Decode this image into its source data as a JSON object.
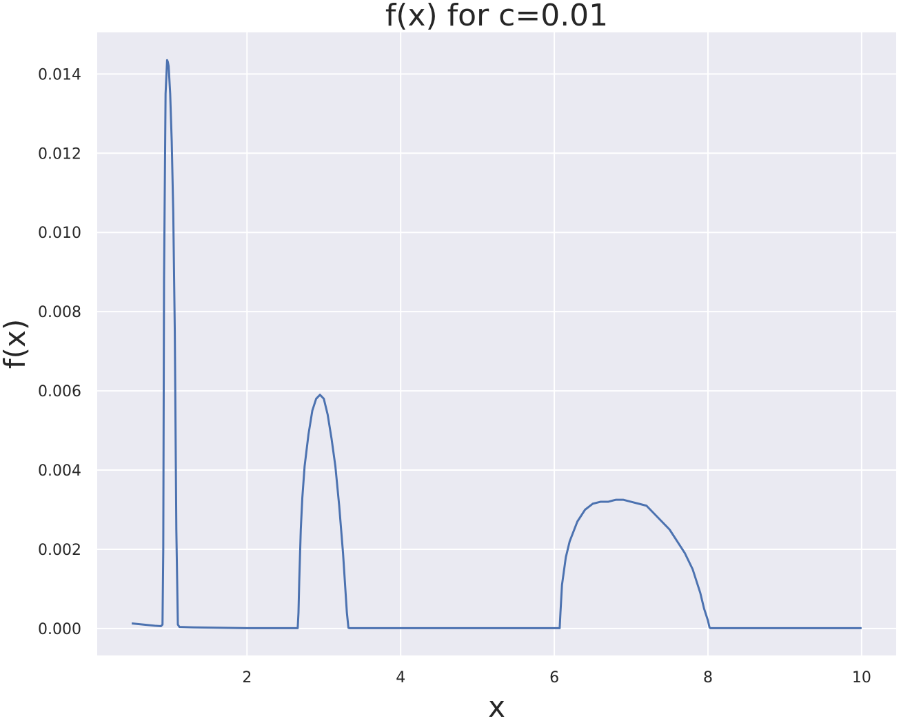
{
  "chart_data": {
    "type": "line",
    "title": "f(x) for c=0.01",
    "xlabel": "x",
    "ylabel": "f(x)",
    "xlim": [
      0.05,
      10.45
    ],
    "ylim": [
      -0.00068,
      0.01505
    ],
    "xticks": [
      2,
      4,
      6,
      8,
      10
    ],
    "yticks": [
      0.0,
      0.002,
      0.004,
      0.006,
      0.008,
      0.01,
      0.012,
      0.014
    ],
    "xtick_labels": [
      "2",
      "4",
      "6",
      "8",
      "10"
    ],
    "ytick_labels": [
      "0.000",
      "0.002",
      "0.004",
      "0.006",
      "0.008",
      "0.010",
      "0.012",
      "0.014"
    ],
    "grid": true,
    "background_color": "#eaeaf2",
    "grid_color": "#ffffff",
    "series": [
      {
        "color": "#4c72b0",
        "x": [
          0.5,
          0.6,
          0.7,
          0.8,
          0.88,
          0.9,
          0.91,
          0.92,
          0.94,
          0.96,
          0.97,
          0.98,
          1.0,
          1.02,
          1.04,
          1.06,
          1.08,
          1.1,
          1.12,
          1.3,
          1.6,
          2.0,
          2.3,
          2.66,
          2.67,
          2.68,
          2.7,
          2.72,
          2.75,
          2.8,
          2.85,
          2.9,
          2.95,
          3.0,
          3.05,
          3.1,
          3.15,
          3.2,
          3.25,
          3.3,
          3.32,
          3.33,
          3.34,
          3.5,
          4.0,
          5.0,
          6.0,
          6.07,
          6.08,
          6.1,
          6.15,
          6.2,
          6.3,
          6.4,
          6.5,
          6.6,
          6.7,
          6.8,
          6.9,
          7.0,
          7.1,
          7.2,
          7.3,
          7.4,
          7.5,
          7.6,
          7.7,
          7.8,
          7.9,
          7.95,
          8.0,
          8.02,
          8.03,
          8.05,
          8.06,
          8.5,
          9.0,
          10.0
        ],
        "y": [
          0.00013,
          0.00011,
          9e-05,
          7e-05,
          6e-05,
          0.0001,
          0.002,
          0.0088,
          0.0135,
          0.01435,
          0.0143,
          0.0142,
          0.0135,
          0.0123,
          0.0105,
          0.0075,
          0.0025,
          0.0001,
          4e-05,
          3e-05,
          2e-05,
          1e-05,
          1e-05,
          1e-05,
          0.0004,
          0.0012,
          0.0025,
          0.0033,
          0.0041,
          0.0049,
          0.0055,
          0.0058,
          0.0059,
          0.0058,
          0.0054,
          0.0048,
          0.0041,
          0.0031,
          0.0019,
          0.0004,
          2e-05,
          1e-05,
          1e-05,
          1e-05,
          1e-05,
          1e-05,
          1e-05,
          1e-05,
          0.0004,
          0.0011,
          0.0018,
          0.0022,
          0.0027,
          0.003,
          0.00315,
          0.0032,
          0.0032,
          0.00325,
          0.00325,
          0.0032,
          0.00315,
          0.0031,
          0.0029,
          0.0027,
          0.0025,
          0.0022,
          0.0019,
          0.0015,
          0.0009,
          0.0005,
          0.0002,
          3e-05,
          1e-05,
          1e-05,
          1e-05,
          1e-05,
          1e-05,
          1e-05
        ]
      }
    ]
  }
}
